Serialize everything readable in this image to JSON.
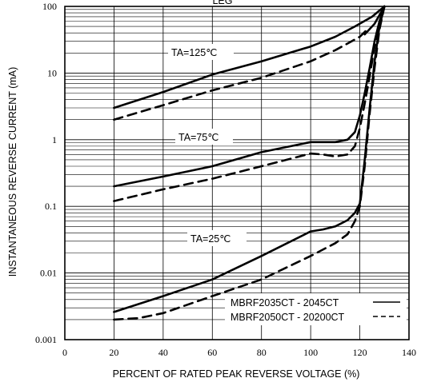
{
  "chart_data": {
    "type": "line",
    "title_partial": "LEG",
    "xlabel": "PERCENT OF RATED PEAK REVERSE VOLTAGE (%)",
    "ylabel": "INSTANTANEOUS REVERSE CURRENT (mA)",
    "xlim": [
      0,
      140
    ],
    "ylim": [
      0.001,
      100
    ],
    "y_scale": "log",
    "grid": true,
    "x_ticks": [
      "0",
      "20",
      "40",
      "60",
      "80",
      "100",
      "120",
      "140"
    ],
    "y_ticks": [
      "0.001",
      "0.01",
      "0.1",
      "1",
      "10",
      "100"
    ],
    "annotations": [
      "TA=125℃",
      "TA=75℃",
      "TA=25℃"
    ],
    "legend_position": "bottom-right",
    "legend": [
      {
        "label": "MBRF2035CT - 2045CT",
        "style": "solid"
      },
      {
        "label": "MBRF2050CT - 20200CT",
        "style": "dashed"
      }
    ],
    "series": [
      {
        "group": "TA=125℃",
        "style": "solid",
        "x": [
          20,
          40,
          60,
          80,
          100,
          110,
          118,
          125,
          130
        ],
        "y": [
          3,
          5.2,
          9.5,
          15,
          25,
          35,
          50,
          70,
          100
        ]
      },
      {
        "group": "TA=125℃",
        "style": "dashed",
        "x": [
          20,
          40,
          60,
          80,
          100,
          110,
          120,
          123
        ],
        "y": [
          2,
          3.3,
          5.5,
          8.5,
          15,
          22,
          35,
          45
        ]
      },
      {
        "group": "TA=125℃",
        "style": "solid",
        "x": [
          122,
          126,
          130
        ],
        "y": [
          38,
          55,
          100
        ]
      },
      {
        "group": "TA=75℃",
        "style": "solid",
        "x": [
          20,
          40,
          60,
          80,
          100,
          105,
          110,
          115,
          118,
          120,
          122,
          124,
          126,
          128,
          130
        ],
        "y": [
          0.2,
          0.28,
          0.4,
          0.65,
          0.92,
          0.92,
          0.92,
          1.0,
          1.3,
          2.3,
          5,
          12,
          30,
          60,
          100
        ]
      },
      {
        "group": "TA=75℃",
        "style": "dashed",
        "x": [
          20,
          40,
          60,
          80,
          100,
          105,
          110,
          115,
          118,
          120,
          122,
          124,
          126,
          128,
          130
        ],
        "y": [
          0.12,
          0.18,
          0.26,
          0.4,
          0.62,
          0.6,
          0.56,
          0.6,
          0.8,
          1.5,
          3.5,
          9,
          25,
          55,
          100
        ]
      },
      {
        "group": "TA=25℃",
        "style": "solid",
        "x": [
          20,
          40,
          60,
          80,
          100,
          105,
          110,
          115,
          118,
          120,
          122,
          124,
          126,
          128,
          130
        ],
        "y": [
          0.0026,
          0.0045,
          0.008,
          0.018,
          0.042,
          0.045,
          0.05,
          0.062,
          0.08,
          0.11,
          0.5,
          3,
          15,
          50,
          100
        ]
      },
      {
        "group": "TA=25℃",
        "style": "dashed",
        "x": [
          20,
          30,
          40,
          60,
          80,
          100,
          110,
          115,
          118,
          120,
          122,
          124,
          126,
          128,
          130
        ],
        "y": [
          0.002,
          0.0021,
          0.0025,
          0.0045,
          0.008,
          0.018,
          0.028,
          0.038,
          0.06,
          0.1,
          0.4,
          2.5,
          12,
          45,
          100
        ]
      }
    ]
  }
}
